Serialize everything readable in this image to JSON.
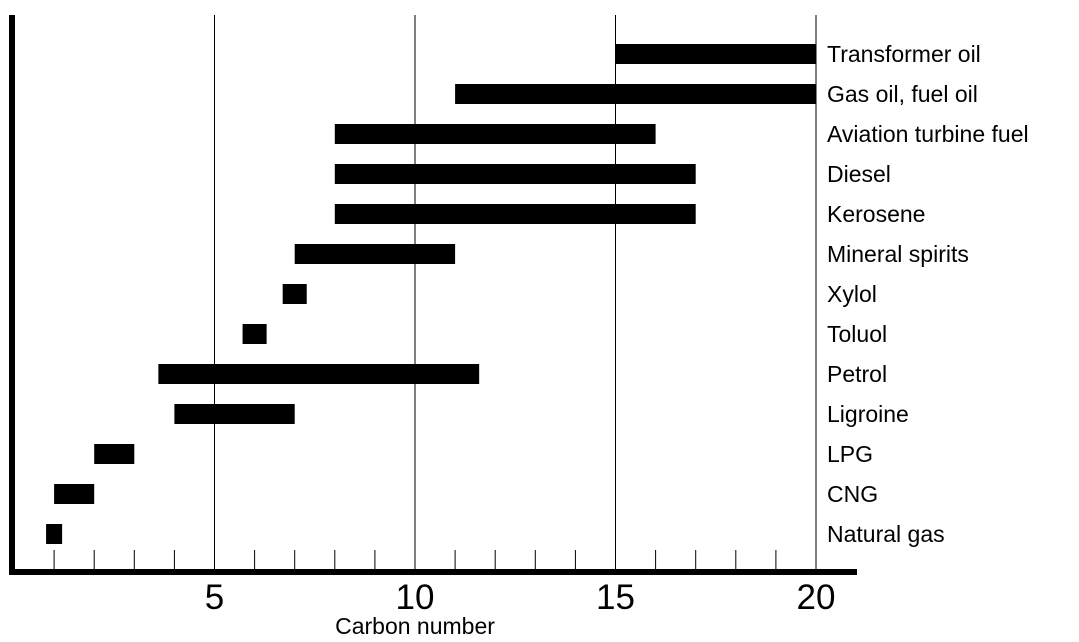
{
  "chart_data": {
    "type": "bar",
    "orientation": "horizontal-range",
    "title": "",
    "xlabel": "Carbon number",
    "ylabel": "",
    "xlim": [
      0,
      20
    ],
    "x_ticks": [
      5,
      10,
      15,
      20
    ],
    "x_minor_step": 1,
    "grid": "vertical lines at 5, 10, 15, 20",
    "legend": "none",
    "categories": [
      "Transformer oil",
      "Gas oil, fuel oil",
      "Aviation turbine fuel",
      "Diesel",
      "Kerosene",
      "Mineral spirits",
      "Xylol",
      "Toluol",
      "Petrol",
      "Ligroine",
      "LPG",
      "CNG",
      "Natural gas"
    ],
    "ranges": [
      [
        15,
        20
      ],
      [
        11,
        20
      ],
      [
        8,
        16
      ],
      [
        8,
        17
      ],
      [
        8,
        17
      ],
      [
        7,
        11
      ],
      [
        6.7,
        7.3
      ],
      [
        5.7,
        6.3
      ],
      [
        3.6,
        11.6
      ],
      [
        4,
        7
      ],
      [
        2,
        3
      ],
      [
        1,
        2
      ],
      [
        0.8,
        1.2
      ]
    ],
    "bar_color": "#000000"
  }
}
